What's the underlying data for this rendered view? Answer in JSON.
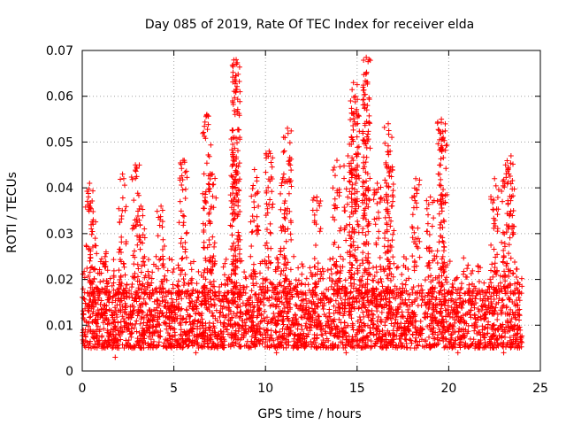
{
  "chart_data": {
    "type": "scatter",
    "title": "Day 085 of 2019, Rate Of TEC Index for receiver elda",
    "xlabel": "GPS time / hours",
    "ylabel": "ROTI / TECUs",
    "xlim": [
      0,
      25
    ],
    "ylim": [
      0,
      0.07
    ],
    "xticks": [
      0,
      5,
      10,
      15,
      20,
      25
    ],
    "xtick_labels": [
      "0",
      "5",
      "10",
      "15",
      "20",
      "25"
    ],
    "yticks": [
      0,
      0.01,
      0.02,
      0.03,
      0.04,
      0.05,
      0.06,
      0.07
    ],
    "ytick_labels": [
      "0",
      "0.01",
      "0.02",
      "0.03",
      "0.04",
      "0.05",
      "0.06",
      "0.07"
    ],
    "grid": true,
    "marker": "+",
    "color": "#ff0000",
    "series": [
      {
        "name": "ROTI",
        "x_range": [
          0,
          24
        ],
        "dense_band": [
          0.005,
          0.017
        ],
        "spread_max": 0.025,
        "peaks": [
          {
            "x": 0.4,
            "y": 0.041
          },
          {
            "x": 0.6,
            "y": 0.033
          },
          {
            "x": 1.3,
            "y": 0.026
          },
          {
            "x": 2.2,
            "y": 0.043
          },
          {
            "x": 2.9,
            "y": 0.045
          },
          {
            "x": 3.2,
            "y": 0.036
          },
          {
            "x": 4.3,
            "y": 0.036
          },
          {
            "x": 5.5,
            "y": 0.046
          },
          {
            "x": 6.8,
            "y": 0.056
          },
          {
            "x": 7.1,
            "y": 0.043
          },
          {
            "x": 8.3,
            "y": 0.051
          },
          {
            "x": 8.4,
            "y": 0.068
          },
          {
            "x": 8.4,
            "y": 0.0645
          },
          {
            "x": 9.4,
            "y": 0.044
          },
          {
            "x": 10.2,
            "y": 0.048
          },
          {
            "x": 11.0,
            "y": 0.043
          },
          {
            "x": 11.2,
            "y": 0.053
          },
          {
            "x": 12.8,
            "y": 0.038
          },
          {
            "x": 13.9,
            "y": 0.046
          },
          {
            "x": 14.5,
            "y": 0.047
          },
          {
            "x": 14.8,
            "y": 0.063
          },
          {
            "x": 14.9,
            "y": 0.06
          },
          {
            "x": 15.5,
            "y": 0.0685
          },
          {
            "x": 15.5,
            "y": 0.065
          },
          {
            "x": 16.1,
            "y": 0.041
          },
          {
            "x": 16.7,
            "y": 0.054
          },
          {
            "x": 16.8,
            "y": 0.048
          },
          {
            "x": 18.2,
            "y": 0.042
          },
          {
            "x": 19.0,
            "y": 0.038
          },
          {
            "x": 19.6,
            "y": 0.055
          },
          {
            "x": 19.7,
            "y": 0.051
          },
          {
            "x": 22.5,
            "y": 0.042
          },
          {
            "x": 23.1,
            "y": 0.045
          },
          {
            "x": 23.4,
            "y": 0.047
          }
        ],
        "low_points": [
          {
            "x": 1.8,
            "y": 0.003
          },
          {
            "x": 6.2,
            "y": 0.004
          },
          {
            "x": 10.6,
            "y": 0.004
          },
          {
            "x": 14.4,
            "y": 0.004
          },
          {
            "x": 20.5,
            "y": 0.004
          },
          {
            "x": 23.0,
            "y": 0.004
          }
        ]
      }
    ]
  }
}
